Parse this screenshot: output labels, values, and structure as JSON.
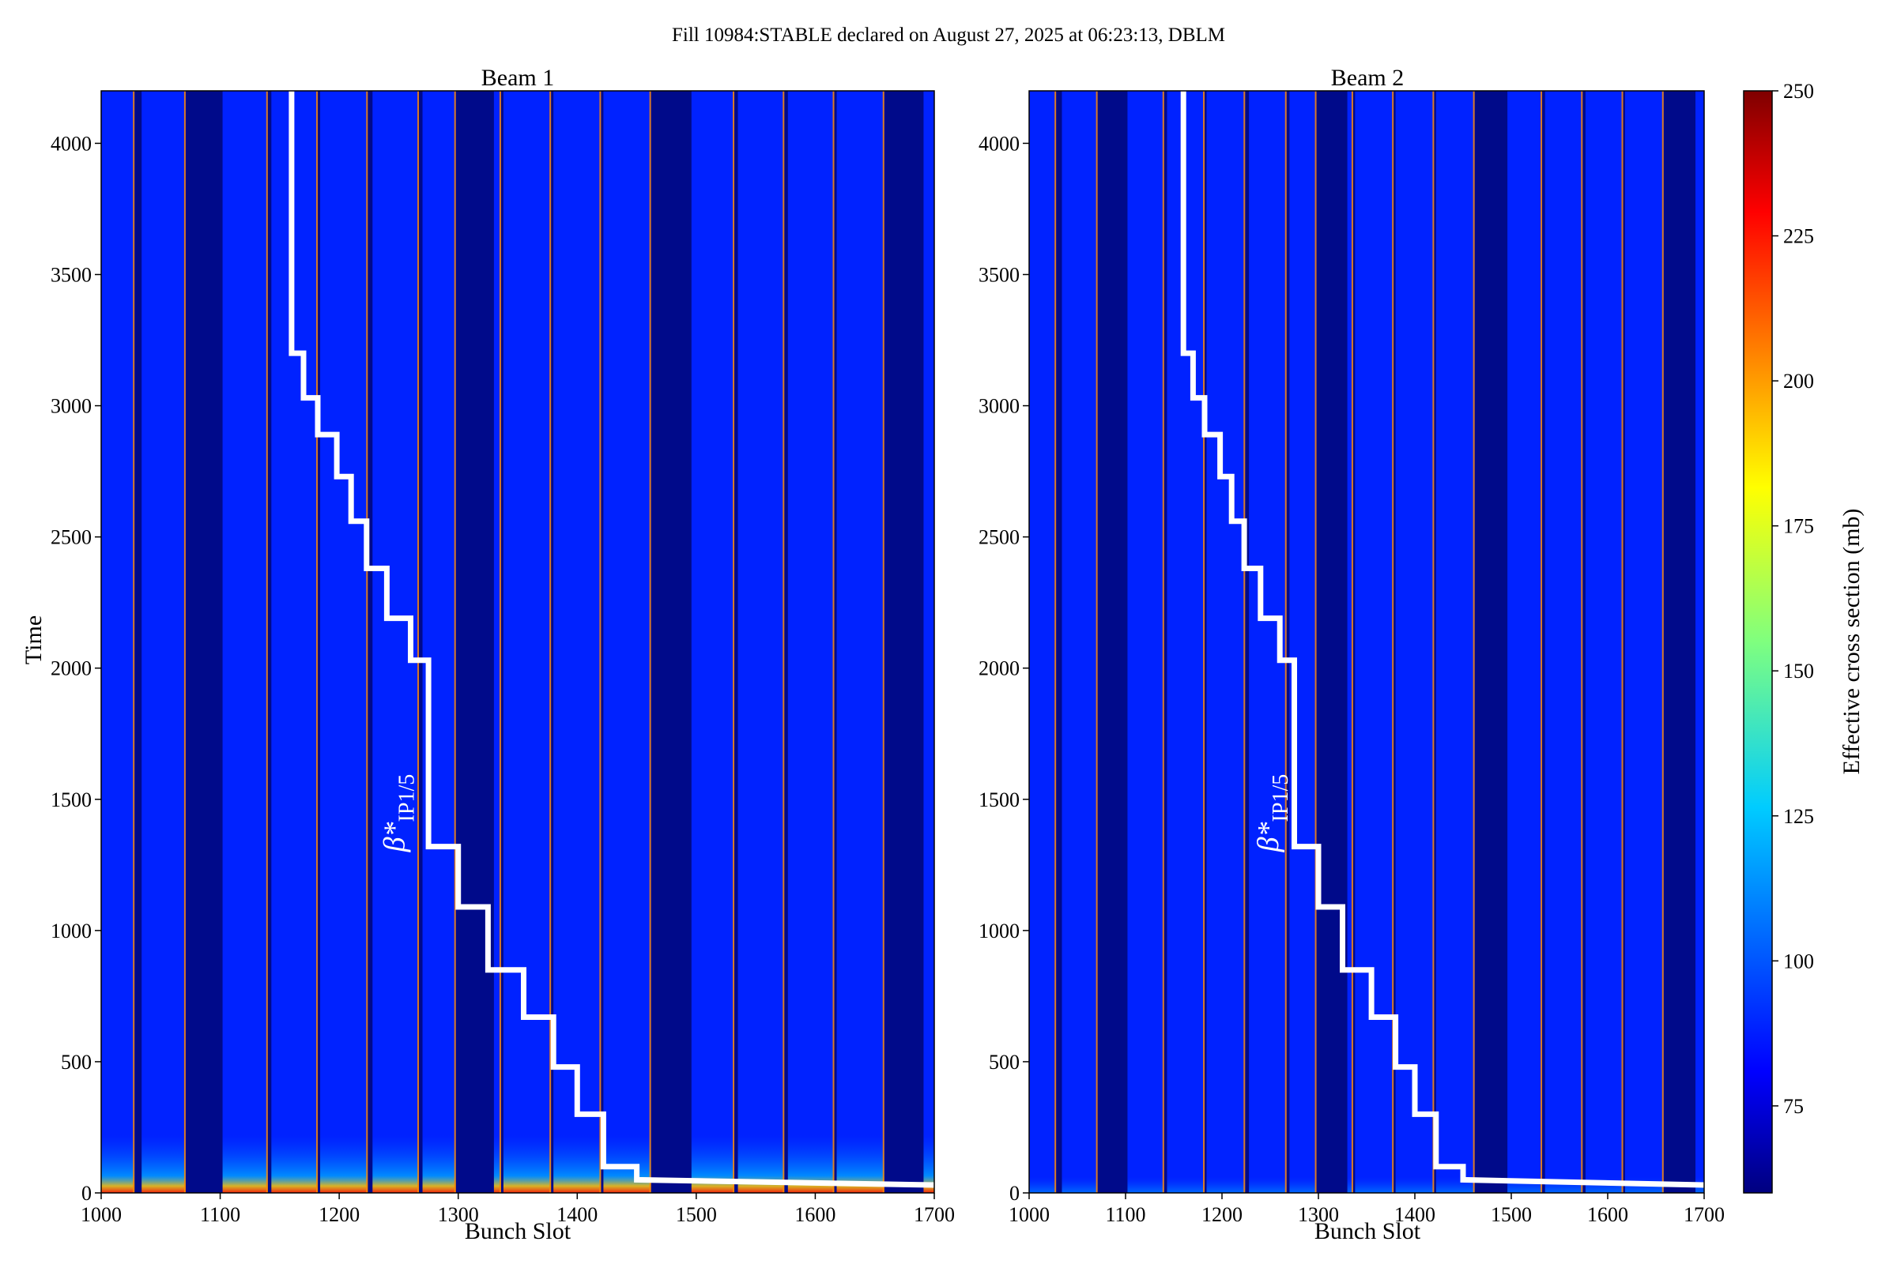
{
  "suptitle": "Fill 10984:STABLE declared on August 27, 2025 at 06:23:13, DBLM",
  "colors": {
    "background_blue": "#0022ff",
    "gap_navy": "#000a8a",
    "line_white": "#ffffff",
    "hot_band": "#ff8800"
  },
  "colorbar": {
    "label": "Effective cross section (mb)",
    "range": [
      60,
      250
    ],
    "ticks": [
      "75",
      "100",
      "125",
      "150",
      "175",
      "200",
      "225",
      "250"
    ],
    "colormap": "jet"
  },
  "chart_data": [
    {
      "type": "heatmap",
      "title": "Beam 1",
      "xlabel": "Bunch Slot",
      "ylabel": "Time",
      "xlim": [
        1000,
        1700
      ],
      "ylim": [
        0,
        4200
      ],
      "xticks": [
        "1000",
        "1100",
        "1200",
        "1300",
        "1400",
        "1500",
        "1600",
        "1700"
      ],
      "yticks": [
        "0",
        "500",
        "1000",
        "1500",
        "2000",
        "2500",
        "3000",
        "3500",
        "4000"
      ],
      "gaps": [
        [
          1028,
          1034
        ],
        [
          1071,
          1102
        ],
        [
          1140,
          1143
        ],
        [
          1182,
          1184
        ],
        [
          1224,
          1228
        ],
        [
          1267,
          1270
        ],
        [
          1298,
          1330
        ],
        [
          1336,
          1338
        ],
        [
          1378,
          1380
        ],
        [
          1420,
          1422
        ],
        [
          1462,
          1496
        ],
        [
          1532,
          1535
        ],
        [
          1574,
          1577
        ],
        [
          1616,
          1618
        ],
        [
          1658,
          1691
        ]
      ],
      "low_time_band": {
        "t_max": 220,
        "peak_value": 240
      },
      "annotation": {
        "label": "β*",
        "subscript": "IP1/5",
        "x": 1240,
        "y": 1450
      },
      "overlay_series": {
        "name": "β* IP1/5",
        "x": [
          1160,
          1160,
          1170,
          1170,
          1182,
          1182,
          1198,
          1198,
          1210,
          1210,
          1223,
          1223,
          1240,
          1240,
          1260,
          1260,
          1275,
          1275,
          1300,
          1300,
          1325,
          1325,
          1355,
          1355,
          1380,
          1380,
          1400,
          1400,
          1422,
          1422,
          1450,
          1450,
          1700
        ],
        "y": [
          4200,
          3200,
          3200,
          3030,
          3030,
          2890,
          2890,
          2730,
          2730,
          2560,
          2560,
          2380,
          2380,
          2190,
          2190,
          2030,
          2030,
          1320,
          1320,
          1090,
          1090,
          850,
          850,
          670,
          670,
          480,
          480,
          300,
          300,
          100,
          100,
          50,
          30
        ]
      }
    },
    {
      "type": "heatmap",
      "title": "Beam 2",
      "xlabel": "Bunch Slot",
      "ylabel": "",
      "xlim": [
        1000,
        1700
      ],
      "ylim": [
        0,
        4200
      ],
      "xticks": [
        "1000",
        "1100",
        "1200",
        "1300",
        "1400",
        "1500",
        "1600",
        "1700"
      ],
      "yticks": [
        "0",
        "500",
        "1000",
        "1500",
        "2000",
        "2500",
        "3000",
        "3500",
        "4000"
      ],
      "gaps": [
        [
          1028,
          1034
        ],
        [
          1071,
          1102
        ],
        [
          1140,
          1143
        ],
        [
          1182,
          1184
        ],
        [
          1224,
          1228
        ],
        [
          1267,
          1270
        ],
        [
          1298,
          1330
        ],
        [
          1336,
          1338
        ],
        [
          1378,
          1380
        ],
        [
          1420,
          1422
        ],
        [
          1462,
          1496
        ],
        [
          1532,
          1535
        ],
        [
          1574,
          1577
        ],
        [
          1616,
          1618
        ],
        [
          1658,
          1691
        ]
      ],
      "low_time_band": {
        "t_max": 60,
        "peak_value": 140
      },
      "annotation": {
        "label": "β*",
        "subscript": "IP1/5",
        "x": 1240,
        "y": 1450
      },
      "overlay_series": {
        "name": "β* IP1/5",
        "x": [
          1160,
          1160,
          1170,
          1170,
          1182,
          1182,
          1198,
          1198,
          1210,
          1210,
          1223,
          1223,
          1240,
          1240,
          1260,
          1260,
          1275,
          1275,
          1300,
          1300,
          1325,
          1325,
          1355,
          1355,
          1380,
          1380,
          1400,
          1400,
          1422,
          1422,
          1450,
          1450,
          1700
        ],
        "y": [
          4200,
          3200,
          3200,
          3030,
          3030,
          2890,
          2890,
          2730,
          2730,
          2560,
          2560,
          2380,
          2380,
          2190,
          2190,
          2030,
          2030,
          1320,
          1320,
          1090,
          1090,
          850,
          850,
          670,
          670,
          480,
          480,
          300,
          300,
          100,
          100,
          50,
          30
        ]
      }
    }
  ]
}
